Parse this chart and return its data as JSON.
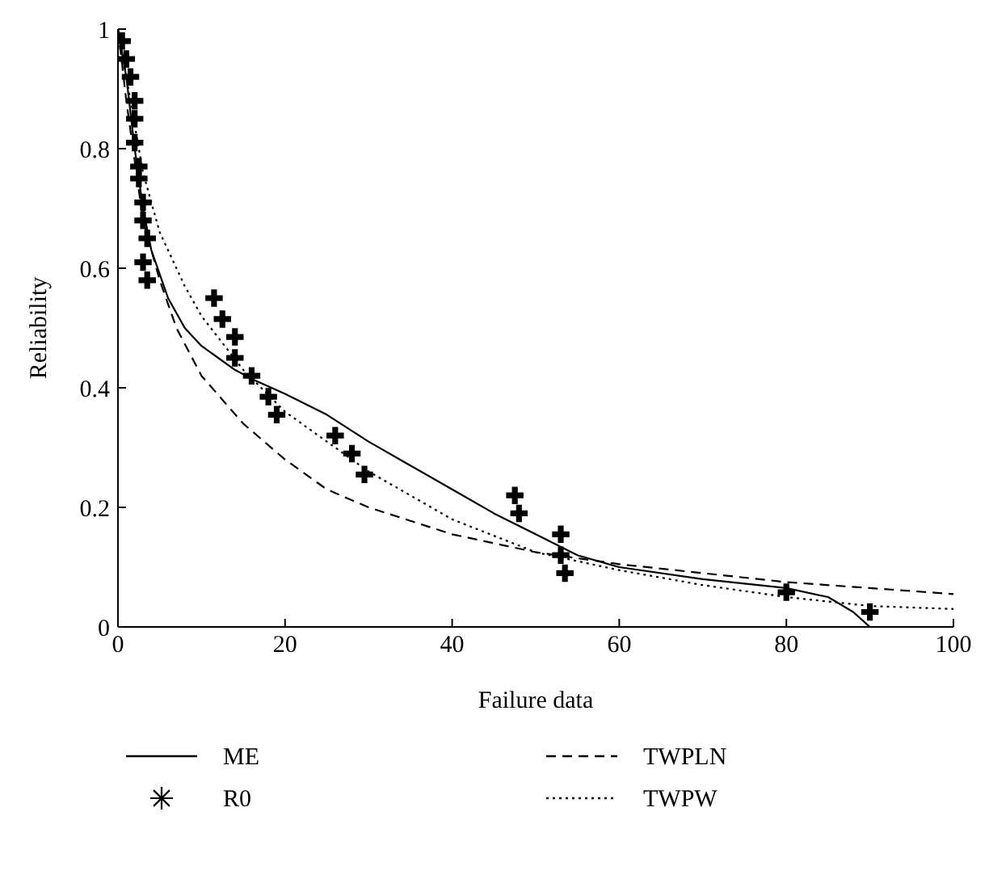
{
  "chart_data": {
    "type": "line",
    "xlabel": "Failure data",
    "ylabel": "Reliability",
    "xlim": [
      0,
      100
    ],
    "xticks": [
      0,
      20,
      40,
      60,
      80,
      100
    ],
    "ylim": [
      0,
      1
    ],
    "yticks": [
      0,
      0.2,
      0.4,
      0.6,
      0.8,
      1
    ],
    "legend": "bottom",
    "series": [
      {
        "name": "ME",
        "color": "#000000",
        "line_style": "solid",
        "marker": "none",
        "x": [
          0,
          1,
          2,
          3,
          4,
          6,
          8,
          10,
          12,
          14,
          16,
          20,
          25,
          30,
          35,
          40,
          45,
          50,
          55,
          60,
          70,
          80,
          85,
          88,
          90
        ],
        "values": [
          1,
          0.92,
          0.8,
          0.7,
          0.63,
          0.55,
          0.5,
          0.47,
          0.45,
          0.43,
          0.415,
          0.39,
          0.355,
          0.31,
          0.27,
          0.23,
          0.19,
          0.155,
          0.12,
          0.1,
          0.08,
          0.065,
          0.05,
          0.025,
          0
        ]
      },
      {
        "name": "TWPLN",
        "color": "#000000",
        "line_style": "dashed",
        "marker": "none",
        "x": [
          0,
          1,
          2,
          3,
          5,
          7,
          10,
          15,
          20,
          25,
          30,
          40,
          50,
          60,
          70,
          80,
          90,
          100
        ],
        "values": [
          1,
          0.88,
          0.78,
          0.68,
          0.58,
          0.5,
          0.42,
          0.34,
          0.28,
          0.23,
          0.2,
          0.155,
          0.125,
          0.105,
          0.09,
          0.075,
          0.065,
          0.055
        ]
      },
      {
        "name": "R0",
        "type": "scatter",
        "color": "#000000",
        "marker": "cross",
        "x": [
          0.5,
          1,
          1.5,
          2,
          2,
          2,
          2.5,
          2.5,
          3,
          3,
          3.5,
          3,
          3.5,
          11.5,
          12.5,
          14,
          14,
          16,
          18,
          19,
          26,
          28,
          29.5,
          47.5,
          48,
          53,
          53,
          53.5,
          80,
          90
        ],
        "values": [
          0.98,
          0.95,
          0.92,
          0.88,
          0.85,
          0.81,
          0.77,
          0.75,
          0.71,
          0.68,
          0.65,
          0.61,
          0.58,
          0.55,
          0.515,
          0.485,
          0.45,
          0.42,
          0.385,
          0.355,
          0.32,
          0.29,
          0.255,
          0.22,
          0.19,
          0.155,
          0.12,
          0.09,
          0.058,
          0.025
        ]
      },
      {
        "name": "TWPW",
        "color": "#000000",
        "line_style": "dotted",
        "marker": "none",
        "x": [
          0,
          1,
          2,
          3,
          5,
          8,
          10,
          15,
          20,
          25,
          30,
          40,
          50,
          60,
          70,
          80,
          90,
          100
        ],
        "values": [
          1,
          0.92,
          0.84,
          0.76,
          0.66,
          0.57,
          0.52,
          0.43,
          0.36,
          0.31,
          0.26,
          0.18,
          0.125,
          0.095,
          0.07,
          0.05,
          0.035,
          0.03
        ]
      }
    ]
  }
}
